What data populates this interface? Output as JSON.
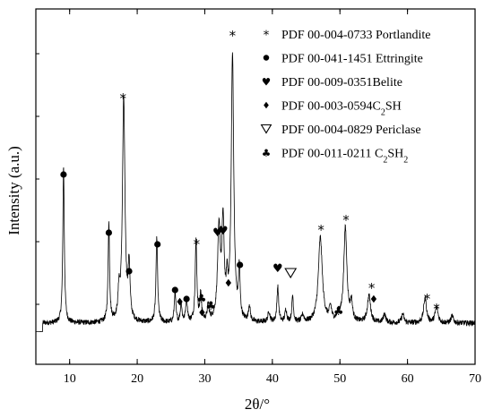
{
  "chart_data": {
    "type": "line",
    "xlabel": "2θ/°",
    "ylabel": "Intensity (a.u.)",
    "xlim": [
      5,
      70
    ],
    "x_ticks": [
      10,
      20,
      30,
      40,
      50,
      60,
      70
    ],
    "y_tick_labels": "none",
    "grid": false,
    "legend_position": "top-right",
    "baseline": 10,
    "noise": 3,
    "peaks": [
      {
        "x": 9.1,
        "h": 175,
        "w": 0.13
      },
      {
        "x": 15.8,
        "h": 110,
        "w": 0.13
      },
      {
        "x": 17.3,
        "h": 30,
        "w": 0.15
      },
      {
        "x": 18.0,
        "h": 250,
        "w": 0.22
      },
      {
        "x": 18.8,
        "h": 60,
        "w": 0.16
      },
      {
        "x": 22.9,
        "h": 95,
        "w": 0.14
      },
      {
        "x": 25.6,
        "h": 35,
        "w": 0.13
      },
      {
        "x": 26.5,
        "h": 22,
        "w": 0.13
      },
      {
        "x": 27.3,
        "h": 28,
        "w": 0.14
      },
      {
        "x": 28.7,
        "h": 90,
        "w": 0.15
      },
      {
        "x": 29.4,
        "h": 30,
        "w": 0.15
      },
      {
        "x": 30.5,
        "h": 18,
        "w": 0.15
      },
      {
        "x": 32.1,
        "h": 100,
        "w": 0.25
      },
      {
        "x": 32.7,
        "h": 105,
        "w": 0.2
      },
      {
        "x": 33.3,
        "h": 35,
        "w": 0.14
      },
      {
        "x": 34.1,
        "h": 298,
        "w": 0.22
      },
      {
        "x": 35.1,
        "h": 55,
        "w": 0.14
      },
      {
        "x": 36.6,
        "h": 18,
        "w": 0.15
      },
      {
        "x": 39.5,
        "h": 12,
        "w": 0.18
      },
      {
        "x": 40.8,
        "h": 40,
        "w": 0.15
      },
      {
        "x": 42.0,
        "h": 14,
        "w": 0.16
      },
      {
        "x": 43.0,
        "h": 30,
        "w": 0.14
      },
      {
        "x": 44.5,
        "h": 8,
        "w": 0.2
      },
      {
        "x": 47.1,
        "h": 95,
        "w": 0.35
      },
      {
        "x": 48.6,
        "h": 15,
        "w": 0.2
      },
      {
        "x": 49.8,
        "h": 8,
        "w": 0.2
      },
      {
        "x": 50.8,
        "h": 105,
        "w": 0.28
      },
      {
        "x": 51.7,
        "h": 20,
        "w": 0.18
      },
      {
        "x": 54.3,
        "h": 30,
        "w": 0.28
      },
      {
        "x": 56.6,
        "h": 10,
        "w": 0.2
      },
      {
        "x": 59.3,
        "h": 10,
        "w": 0.2
      },
      {
        "x": 62.6,
        "h": 28,
        "w": 0.25
      },
      {
        "x": 64.3,
        "h": 18,
        "w": 0.25
      },
      {
        "x": 66.6,
        "h": 8,
        "w": 0.2
      }
    ],
    "annotations": [
      {
        "sym": "●",
        "x": 9.1,
        "y": 176
      },
      {
        "sym": "●",
        "x": 15.8,
        "y": 111
      },
      {
        "sym": "*",
        "x": 17.9,
        "y": 262
      },
      {
        "sym": "●",
        "x": 18.8,
        "y": 68
      },
      {
        "sym": "●",
        "x": 23.0,
        "y": 98
      },
      {
        "sym": "●",
        "x": 25.6,
        "y": 47
      },
      {
        "sym": "◆",
        "x": 26.3,
        "y": 34
      },
      {
        "sym": "●",
        "x": 27.3,
        "y": 37
      },
      {
        "sym": "*",
        "x": 28.8,
        "y": 99
      },
      {
        "sym": "♣",
        "x": 29.5,
        "y": 38
      },
      {
        "sym": "◆",
        "x": 29.6,
        "y": 22
      },
      {
        "sym": "♣",
        "x": 30.9,
        "y": 30
      },
      {
        "sym": "♥",
        "x": 31.9,
        "y": 112
      },
      {
        "sym": "♥",
        "x": 32.7,
        "y": 114
      },
      {
        "sym": "◆",
        "x": 33.5,
        "y": 55
      },
      {
        "sym": "*",
        "x": 34.1,
        "y": 332
      },
      {
        "sym": "●",
        "x": 35.2,
        "y": 75
      },
      {
        "sym": "♥",
        "x": 40.8,
        "y": 72
      },
      {
        "sym": "∇",
        "x": 42.7,
        "y": 66
      },
      {
        "sym": "*",
        "x": 47.2,
        "y": 115
      },
      {
        "sym": "♣",
        "x": 49.8,
        "y": 24
      },
      {
        "sym": "*",
        "x": 50.9,
        "y": 126
      },
      {
        "sym": "*",
        "x": 54.7,
        "y": 50
      },
      {
        "sym": "◆",
        "x": 55.0,
        "y": 37
      },
      {
        "sym": "*",
        "x": 62.9,
        "y": 38
      },
      {
        "sym": "*",
        "x": 64.3,
        "y": 27
      }
    ]
  },
  "legend": [
    {
      "sym": "*",
      "text": "PDF 00-004-0733 Portlandite",
      "sub": "",
      "tail": ""
    },
    {
      "sym": "●",
      "text": "PDF 00-041-1451 Ettringite",
      "sub": "",
      "tail": ""
    },
    {
      "sym": "♥",
      "text": "PDF 00-009-0351Belite",
      "sub": "",
      "tail": ""
    },
    {
      "sym": "◆",
      "text": "PDF 00-003-0594C",
      "sub": "2",
      "tail": "SH"
    },
    {
      "sym": "∇",
      "text": "PDF 00-004-0829 Periclase",
      "sub": "",
      "tail": ""
    },
    {
      "sym": "♣",
      "text": "PDF 00-011-0211 C",
      "sub": "2",
      "tail": "SH2"
    }
  ]
}
